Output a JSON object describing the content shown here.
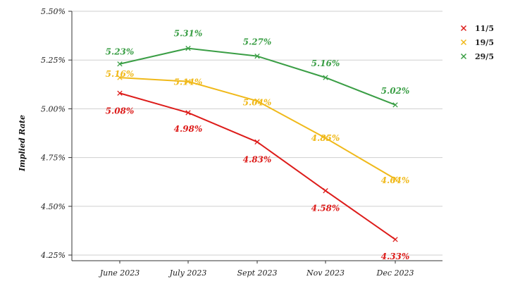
{
  "chart_data": {
    "type": "line",
    "title": "",
    "xlabel": "",
    "ylabel": "Implied Rate",
    "categories": [
      "June 2023",
      "July 2023",
      "Sept 2023",
      "Nov 2023",
      "Dec 2023"
    ],
    "ylim": [
      4.25,
      5.5
    ],
    "yticks": [
      4.25,
      4.5,
      4.75,
      5.0,
      5.25,
      5.5
    ],
    "ytick_labels": [
      "4.25%",
      "4.50%",
      "4.75%",
      "5.00%",
      "5.25%",
      "5.50%"
    ],
    "grid": true,
    "legend_position": "top-right",
    "series": [
      {
        "name": "11/5",
        "color": "#dd1c1a",
        "values": [
          5.08,
          4.98,
          4.83,
          4.58,
          4.33
        ],
        "labels": [
          "5.08%",
          "4.98%",
          "4.83%",
          "4.58%",
          "4.33%"
        ]
      },
      {
        "name": "19/5",
        "color": "#f0b91a",
        "values": [
          5.16,
          5.14,
          5.04,
          4.85,
          4.64
        ],
        "labels": [
          "5.16%",
          "5.14%",
          "5.04%",
          "4.85%",
          "4.64%"
        ]
      },
      {
        "name": "29/5",
        "color": "#3a9e45",
        "values": [
          5.23,
          5.31,
          5.27,
          5.16,
          5.02
        ],
        "labels": [
          "5.23%",
          "5.31%",
          "5.27%",
          "5.16%",
          "5.02%"
        ]
      }
    ]
  }
}
